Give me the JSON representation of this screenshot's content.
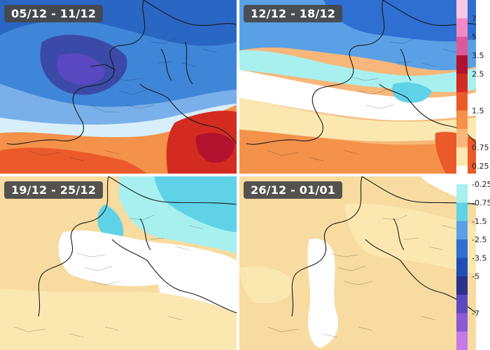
{
  "panels": [
    {
      "label": "05/12 - 11/12"
    },
    {
      "label": "12/12 - 18/12"
    },
    {
      "label": "19/12 - 25/12"
    },
    {
      "label": "26/12 - 01/01"
    }
  ],
  "legend": {
    "ticks": [
      "7",
      "5",
      "3.5",
      "2.5",
      "1.5",
      "0.75",
      "0.25",
      "-0.25",
      "-0.75",
      "-1.5",
      "-2.5",
      "-3.5",
      "-5",
      "-7"
    ],
    "colors": [
      "#f9c6e4",
      "#f08ac4",
      "#dd5a9a",
      "#b3122e",
      "#d42b20",
      "#eb5a2a",
      "#f4914a",
      "#f7b77a",
      "#fbe8b0",
      "#ffffff",
      "#a8f0f0",
      "#5fd2e8",
      "#5aa0e6",
      "#2f6fd2",
      "#1f4fb4",
      "#2a328c",
      "#5a48c0",
      "#8c5ad2",
      "#c47ae8"
    ]
  },
  "map_colors": {
    "land_border": "#1a1a1a",
    "sea_base_warm": "#f7dba0",
    "cold_deep": "#1f4fb4",
    "warm_deep": "#d42b20"
  }
}
